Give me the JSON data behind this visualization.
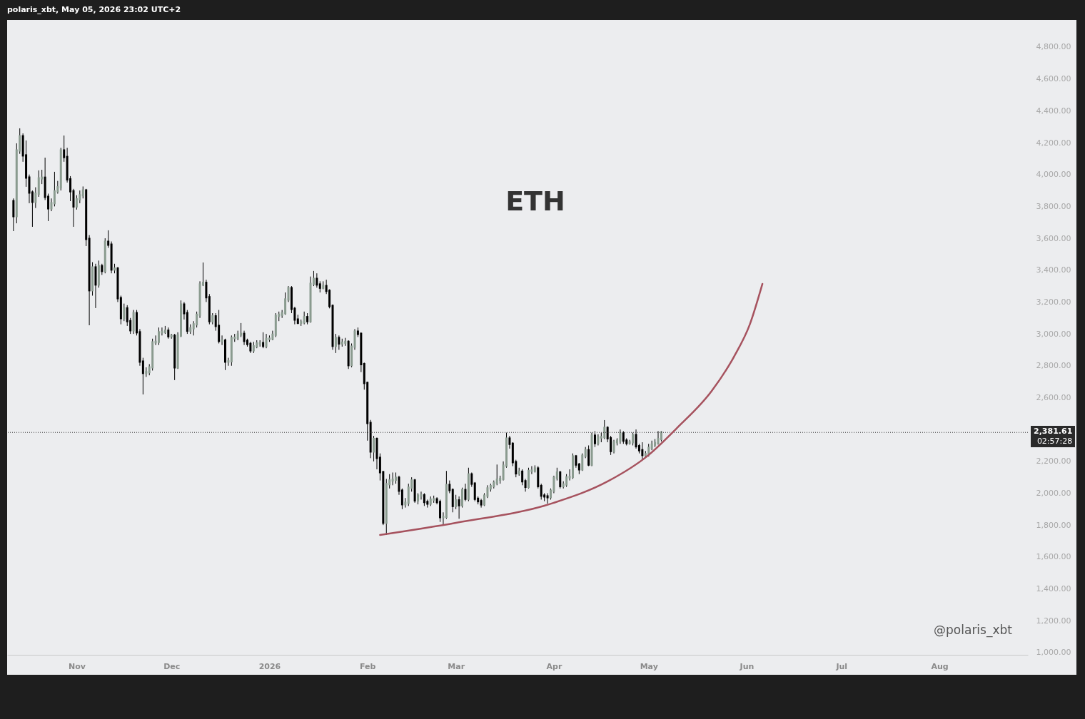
{
  "chart_data": {
    "type": "candlestick",
    "title": "ETH",
    "annotations": [
      "polaris_xbt, May 05, 2026 23:02 UTC+2",
      "@polaris_xbt",
      "02:57:28"
    ],
    "colors": [
      "#000000",
      "#8a9b8f",
      "#8a9b8f",
      "#000000",
      "#000000",
      "#000000",
      "#000000",
      "#8a9b8f",
      "#8a9b8f",
      "#8a9b8f",
      "#000000",
      "#000000",
      "#8a9b8f",
      "#8a9b8f",
      "#8a9b8f",
      "#8a9b8f",
      "#000000",
      "#000000",
      "#000000",
      "#000000",
      "#8a9b8f",
      "#8a9b8f",
      "#8a9b8f",
      "#000000",
      "#000000",
      "#8a9b8f",
      "#000000",
      "#8a9b8f",
      "#000000",
      "#8a9b8f",
      "#000000",
      "#000000",
      "#8a9b8f",
      "#000000",
      "#000000",
      "#8a9b8f",
      "#000000",
      "#000000",
      "#8a9b8f",
      "#000000",
      "#000000",
      "#000000",
      "#8a9b8f",
      "#8a9b8f",
      "#8a9b8f",
      "#8a9b8f",
      "#8a9b8f",
      "#8a9b8f",
      "#8a9b8f",
      "#000000",
      "#8a9b8f",
      "#000000",
      "#8a9b8f",
      "#8a9b8f",
      "#000000",
      "#000000",
      "#8a9b8f",
      "#8a9b8f",
      "#8a9b8f",
      "#8a9b8f",
      "#8a9b8f",
      "#000000",
      "#000000",
      "#8a9b8f",
      "#000000",
      "#000000",
      "#8a9b8f",
      "#000000",
      "#8a9b8f",
      "#8a9b8f",
      "#8a9b8f",
      "#8a9b8f",
      "#8a9b8f",
      "#000000",
      "#000000",
      "#000000",
      "#8a9b8f",
      "#8a9b8f",
      "#8a9b8f",
      "#000000",
      "#8a9b8f",
      "#8a9b8f",
      "#8a9b8f",
      "#8a9b8f",
      "#8a9b8f",
      "#8a9b8f",
      "#8a9b8f",
      "#8a9b8f",
      "#000000",
      "#000000",
      "#000000",
      "#8a9b8f",
      "#8a9b8f",
      "#000000",
      "#8a9b8f",
      "#8a9b8f",
      "#000000",
      "#000000",
      "#8a9b8f",
      "#000000",
      "#000000",
      "#000000",
      "#8a9b8f",
      "#000000",
      "#8a9b8f",
      "#8a9b8f",
      "#000000",
      "#8a9b8f",
      "#8a9b8f",
      "#000000",
      "#000000",
      "#000000",
      "#000000",
      "#000000",
      "#8a9b8f",
      "#000000",
      "#000000",
      "#000000",
      "#8a9b8f",
      "#8a9b8f",
      "#8a9b8f",
      "#8a9b8f",
      "#000000",
      "#000000",
      "#8a9b8f",
      "#8a9b8f",
      "#8a9b8f",
      "#000000",
      "#8a9b8f",
      "#8a9b8f",
      "#000000",
      "#000000",
      "#8a9b8f",
      "#8a9b8f",
      "#000000",
      "#000000",
      "#8a9b8f",
      "#8a9b8f",
      "#000000",
      "#000000",
      "#8a9b8f",
      "#000000",
      "#8a9b8f",
      "#000000",
      "#8a9b8f",
      "#000000",
      "#000000",
      "#000000",
      "#000000",
      "#8a9b8f",
      "#8a9b8f",
      "#8a9b8f",
      "#8a9b8f",
      "#8a9b8f",
      "#8a9b8f",
      "#8a9b8f",
      "#8a9b8f",
      "#000000",
      "#000000",
      "#000000",
      "#8a9b8f",
      "#000000",
      "#000000",
      "#8a9b8f",
      "#8a9b8f",
      "#8a9b8f",
      "#000000",
      "#000000",
      "#000000",
      "#000000",
      "#8a9b8f",
      "#8a9b8f",
      "#8a9b8f",
      "#000000",
      "#8a9b8f",
      "#8a9b8f",
      "#8a9b8f",
      "#8a9b8f",
      "#000000",
      "#000000",
      "#8a9b8f",
      "#8a9b8f",
      "#000000",
      "#8a9b8f",
      "#000000",
      "#8a9b8f",
      "#8a9b8f",
      "#8a9b8f",
      "#000000",
      "#000000",
      "#8a9b8f",
      "#8a9b8f",
      "#8a9b8f",
      "#000000",
      "#000000",
      "#8a9b8f",
      "#8a9b8f",
      "#000000",
      "#000000",
      "#000000",
      "#8a9b8f",
      "#8a9b8f",
      "#8a9b8f",
      "#8a9b8f",
      "#8a9b8f",
      "#8a9b8f"
    ],
    "xlim": [
      "2025-10-10",
      "2026-08-29"
    ],
    "xticks": [
      {
        "value": "2025-11-01",
        "label": "Nov"
      },
      {
        "value": "2025-12-01",
        "label": "Dec"
      },
      {
        "value": "2026-01-01",
        "label": "2026"
      },
      {
        "value": "2026-02-01",
        "label": "Feb"
      },
      {
        "value": "2026-03-01",
        "label": "Mar"
      },
      {
        "value": "2026-04-01",
        "label": "Apr"
      },
      {
        "value": "2026-05-01",
        "label": "May"
      },
      {
        "value": "2026-06-01",
        "label": "Jun"
      },
      {
        "value": "2026-07-01",
        "label": "Jul"
      },
      {
        "value": "2026-08-01",
        "label": "Aug"
      }
    ],
    "ylim": [
      986,
      4970
    ],
    "yticks": [
      {
        "value": 1000,
        "label": "1,000.00"
      },
      {
        "value": 1200,
        "label": "1,200.00"
      },
      {
        "value": 1400,
        "label": "1,400.00"
      },
      {
        "value": 1600,
        "label": "1,600.00"
      },
      {
        "value": 1800,
        "label": "1,800.00"
      },
      {
        "value": 2000,
        "label": "2,000.00"
      },
      {
        "value": 2200,
        "label": "2,200.00"
      },
      {
        "value": 2600,
        "label": "2,600.00"
      },
      {
        "value": 2800,
        "label": "2,800.00"
      },
      {
        "value": 3000,
        "label": "3,000.00"
      },
      {
        "value": 3200,
        "label": "3,200.00"
      },
      {
        "value": 3400,
        "label": "3,400.00"
      },
      {
        "value": 3600,
        "label": "3,600.00"
      },
      {
        "value": 3800,
        "label": "3,800.00"
      },
      {
        "value": 4000,
        "label": "4,000.00"
      },
      {
        "value": 4200,
        "label": "4,200.00"
      },
      {
        "value": 4400,
        "label": "4,400.00"
      },
      {
        "value": 4600,
        "label": "4,600.00"
      },
      {
        "value": 4800,
        "label": "4,800.00"
      }
    ],
    "ref_lines": [
      {
        "axis": "y",
        "value": 2381.61,
        "label": "2,381.61",
        "line_style": "dotted"
      }
    ],
    "x": [
      "2025-10-12",
      "2025-10-13",
      "2025-10-14",
      "2025-10-15",
      "2025-10-16",
      "2025-10-17",
      "2025-10-18",
      "2025-10-19",
      "2025-10-20",
      "2025-10-21",
      "2025-10-22",
      "2025-10-23",
      "2025-10-24",
      "2025-10-25",
      "2025-10-26",
      "2025-10-27",
      "2025-10-28",
      "2025-10-29",
      "2025-10-30",
      "2025-10-31",
      "2025-11-01",
      "2025-11-02",
      "2025-11-03",
      "2025-11-04",
      "2025-11-05",
      "2025-11-06",
      "2025-11-07",
      "2025-11-08",
      "2025-11-09",
      "2025-11-10",
      "2025-11-11",
      "2025-11-12",
      "2025-11-13",
      "2025-11-14",
      "2025-11-15",
      "2025-11-16",
      "2025-11-17",
      "2025-11-18",
      "2025-11-19",
      "2025-11-20",
      "2025-11-21",
      "2025-11-22",
      "2025-11-23",
      "2025-11-24",
      "2025-11-25",
      "2025-11-26",
      "2025-11-27",
      "2025-11-28",
      "2025-11-29",
      "2025-11-30",
      "2025-12-01",
      "2025-12-02",
      "2025-12-03",
      "2025-12-04",
      "2025-12-05",
      "2025-12-06",
      "2025-12-07",
      "2025-12-08",
      "2025-12-09",
      "2025-12-10",
      "2025-12-11",
      "2025-12-12",
      "2025-12-13",
      "2025-12-14",
      "2025-12-15",
      "2025-12-16",
      "2025-12-17",
      "2025-12-18",
      "2025-12-19",
      "2025-12-20",
      "2025-12-21",
      "2025-12-22",
      "2025-12-23",
      "2025-12-24",
      "2025-12-25",
      "2025-12-26",
      "2025-12-27",
      "2025-12-28",
      "2025-12-29",
      "2025-12-30",
      "2025-12-31",
      "2026-01-01",
      "2026-01-02",
      "2026-01-03",
      "2026-01-04",
      "2026-01-05",
      "2026-01-06",
      "2026-01-07",
      "2026-01-08",
      "2026-01-09",
      "2026-01-10",
      "2026-01-11",
      "2026-01-12",
      "2026-01-13",
      "2026-01-14",
      "2026-01-15",
      "2026-01-16",
      "2026-01-17",
      "2026-01-18",
      "2026-01-19",
      "2026-01-20",
      "2026-01-21",
      "2026-01-22",
      "2026-01-23",
      "2026-01-24",
      "2026-01-25",
      "2026-01-26",
      "2026-01-27",
      "2026-01-28",
      "2026-01-29",
      "2026-01-30",
      "2026-01-31",
      "2026-02-01",
      "2026-02-02",
      "2026-02-03",
      "2026-02-04",
      "2026-02-05",
      "2026-02-06",
      "2026-02-07",
      "2026-02-08",
      "2026-02-09",
      "2026-02-10",
      "2026-02-11",
      "2026-02-12",
      "2026-02-13",
      "2026-02-14",
      "2026-02-15",
      "2026-02-16",
      "2026-02-17",
      "2026-02-18",
      "2026-02-19",
      "2026-02-20",
      "2026-02-21",
      "2026-02-22",
      "2026-02-23",
      "2026-02-24",
      "2026-02-25",
      "2026-02-26",
      "2026-02-27",
      "2026-02-28",
      "2026-03-01",
      "2026-03-02",
      "2026-03-03",
      "2026-03-04",
      "2026-03-05",
      "2026-03-06",
      "2026-03-07",
      "2026-03-08",
      "2026-03-09",
      "2026-03-10",
      "2026-03-11",
      "2026-03-12",
      "2026-03-13",
      "2026-03-14",
      "2026-03-15",
      "2026-03-16",
      "2026-03-17",
      "2026-03-18",
      "2026-03-19",
      "2026-03-20",
      "2026-03-21",
      "2026-03-22",
      "2026-03-23",
      "2026-03-24",
      "2026-03-25",
      "2026-03-26",
      "2026-03-27",
      "2026-03-28",
      "2026-03-29",
      "2026-03-30",
      "2026-03-31",
      "2026-04-01",
      "2026-04-02",
      "2026-04-03",
      "2026-04-04",
      "2026-04-05",
      "2026-04-06",
      "2026-04-07",
      "2026-04-08",
      "2026-04-09",
      "2026-04-10",
      "2026-04-11",
      "2026-04-12",
      "2026-04-13",
      "2026-04-14",
      "2026-04-15",
      "2026-04-16",
      "2026-04-17",
      "2026-04-18",
      "2026-04-19",
      "2026-04-20",
      "2026-04-21",
      "2026-04-22",
      "2026-04-23",
      "2026-04-24",
      "2026-04-25",
      "2026-04-26",
      "2026-04-27",
      "2026-04-28",
      "2026-04-29",
      "2026-04-30",
      "2026-05-01",
      "2026-05-02",
      "2026-05-03",
      "2026-05-04",
      "2026-05-05"
    ],
    "ohlc": [
      [
        3833,
        3850,
        3645,
        3739
      ],
      [
        3739,
        4196,
        3694,
        4151
      ],
      [
        4151,
        4290,
        4130,
        4240
      ],
      [
        4240,
        4258,
        4080,
        4120
      ],
      [
        4120,
        4214,
        3923,
        3981
      ],
      [
        3981,
        4000,
        3820,
        3887
      ],
      [
        3887,
        3900,
        3672,
        3829
      ],
      [
        3829,
        3920,
        3790,
        3880
      ],
      [
        3880,
        4026,
        3860,
        3976
      ],
      [
        3976,
        4030,
        3940,
        3980
      ],
      [
        3980,
        4106,
        3840,
        3860
      ],
      [
        3860,
        3880,
        3708,
        3788
      ],
      [
        3788,
        3850,
        3770,
        3820
      ],
      [
        3820,
        4017,
        3800,
        3895
      ],
      [
        3895,
        3960,
        3880,
        3920
      ],
      [
        3920,
        4168,
        3900,
        4151
      ],
      [
        4151,
        4245,
        4080,
        4110
      ],
      [
        4110,
        4168,
        3950,
        3970
      ],
      [
        3970,
        3990,
        3833,
        3895
      ],
      [
        3895,
        3910,
        3672,
        3800
      ],
      [
        3800,
        3870,
        3780,
        3845
      ],
      [
        3845,
        3900,
        3820,
        3870
      ],
      [
        3870,
        3925,
        3850,
        3900
      ],
      [
        3900,
        3910,
        3551,
        3596
      ],
      [
        3596,
        3620,
        3054,
        3274
      ],
      [
        3274,
        3450,
        3240,
        3417
      ],
      [
        3417,
        3440,
        3162,
        3310
      ],
      [
        3310,
        3460,
        3290,
        3425
      ],
      [
        3425,
        3440,
        3370,
        3395
      ],
      [
        3395,
        3600,
        3380,
        3578
      ],
      [
        3578,
        3650,
        3540,
        3560
      ],
      [
        3560,
        3580,
        3380,
        3404
      ],
      [
        3404,
        3440,
        3380,
        3410
      ],
      [
        3410,
        3420,
        3200,
        3224
      ],
      [
        3224,
        3240,
        3060,
        3099
      ],
      [
        3099,
        3190,
        3080,
        3160
      ],
      [
        3160,
        3180,
        3050,
        3080
      ],
      [
        3080,
        3100,
        3000,
        3023
      ],
      [
        3023,
        3150,
        3000,
        3130
      ],
      [
        3130,
        3150,
        2990,
        3010
      ],
      [
        3010,
        3030,
        2800,
        2826
      ],
      [
        2826,
        2850,
        2620,
        2755
      ],
      [
        2755,
        2790,
        2730,
        2760
      ],
      [
        2760,
        2810,
        2740,
        2790
      ],
      [
        2790,
        2970,
        2770,
        2947
      ],
      [
        2947,
        2990,
        2930,
        2950
      ],
      [
        2950,
        3040,
        2930,
        3010
      ],
      [
        3010,
        3040,
        2990,
        3012
      ],
      [
        3012,
        3050,
        3000,
        3020
      ],
      [
        3020,
        3040,
        2970,
        2985
      ],
      [
        2985,
        3000,
        2970,
        2988
      ],
      [
        2988,
        3000,
        2710,
        2790
      ],
      [
        2790,
        3010,
        2780,
        2990
      ],
      [
        2990,
        3210,
        2980,
        3184
      ],
      [
        3184,
        3200,
        3090,
        3130
      ],
      [
        3130,
        3150,
        3000,
        3020
      ],
      [
        3020,
        3060,
        3000,
        3035
      ],
      [
        3035,
        3080,
        2990,
        3060
      ],
      [
        3060,
        3140,
        3040,
        3120
      ],
      [
        3120,
        3330,
        3100,
        3310
      ],
      [
        3310,
        3448,
        3300,
        3320
      ],
      [
        3320,
        3340,
        3200,
        3230
      ],
      [
        3230,
        3250,
        3060,
        3080
      ],
      [
        3080,
        3130,
        3060,
        3110
      ],
      [
        3110,
        3130,
        3020,
        3050
      ],
      [
        3050,
        3150,
        2940,
        2956
      ],
      [
        2956,
        2990,
        2930,
        2958
      ],
      [
        2958,
        2970,
        2773,
        2826
      ],
      [
        2826,
        2850,
        2800,
        2828
      ],
      [
        2828,
        2990,
        2800,
        2974
      ],
      [
        2974,
        3000,
        2950,
        2976
      ],
      [
        2976,
        3020,
        2960,
        2996
      ],
      [
        2996,
        3068,
        2980,
        3000
      ],
      [
        3000,
        3020,
        2930,
        2956
      ],
      [
        2956,
        2970,
        2920,
        2937
      ],
      [
        2937,
        2950,
        2880,
        2897
      ],
      [
        2897,
        2950,
        2880,
        2922
      ],
      [
        2922,
        2960,
        2910,
        2940
      ],
      [
        2940,
        2960,
        2920,
        2942
      ],
      [
        2942,
        3010,
        2910,
        2925
      ],
      [
        2925,
        3000,
        2910,
        2968
      ],
      [
        2968,
        2990,
        2950,
        2970
      ],
      [
        2970,
        3020,
        2960,
        2995
      ],
      [
        2995,
        3130,
        2980,
        3113
      ],
      [
        3113,
        3140,
        3080,
        3120
      ],
      [
        3120,
        3150,
        3100,
        3130
      ],
      [
        3130,
        3260,
        3120,
        3216
      ],
      [
        3216,
        3300,
        3200,
        3287
      ],
      [
        3287,
        3300,
        3130,
        3157
      ],
      [
        3157,
        3170,
        3060,
        3090
      ],
      [
        3090,
        3120,
        3060,
        3070
      ],
      [
        3070,
        3090,
        3050,
        3073
      ],
      [
        3073,
        3140,
        3060,
        3105
      ],
      [
        3105,
        3130,
        3060,
        3080
      ],
      [
        3080,
        3360,
        3070,
        3314
      ],
      [
        3314,
        3395,
        3300,
        3345
      ],
      [
        3345,
        3380,
        3290,
        3310
      ],
      [
        3310,
        3330,
        3260,
        3290
      ],
      [
        3290,
        3330,
        3280,
        3300
      ],
      [
        3300,
        3340,
        3250,
        3270
      ],
      [
        3270,
        3280,
        3160,
        3175
      ],
      [
        3175,
        3185,
        2900,
        2925
      ],
      [
        2925,
        3000,
        2880,
        2974
      ],
      [
        2974,
        2990,
        2900,
        2940
      ],
      [
        2940,
        2970,
        2920,
        2945
      ],
      [
        2945,
        2975,
        2925,
        2950
      ],
      [
        2950,
        2960,
        2780,
        2804
      ],
      [
        2804,
        2940,
        2790,
        2920
      ],
      [
        2920,
        3030,
        2900,
        3014
      ],
      [
        3014,
        3040,
        2980,
        3000
      ],
      [
        3000,
        3010,
        2760,
        2810
      ],
      [
        2810,
        2820,
        2650,
        2692
      ],
      [
        2692,
        2700,
        2330,
        2441
      ],
      [
        2441,
        2460,
        2220,
        2262
      ],
      [
        2262,
        2360,
        2200,
        2340
      ],
      [
        2340,
        2350,
        2150,
        2222
      ],
      [
        2222,
        2250,
        2080,
        2132
      ],
      [
        2132,
        2140,
        1800,
        1815
      ],
      [
        1815,
        2090,
        1738,
        2057
      ],
      [
        2057,
        2120,
        2030,
        2080
      ],
      [
        2080,
        2130,
        2050,
        2085
      ],
      [
        2085,
        2130,
        2060,
        2097
      ],
      [
        2097,
        2110,
        1990,
        2016
      ],
      [
        2016,
        2030,
        1900,
        1931
      ],
      [
        1931,
        1970,
        1910,
        1940
      ],
      [
        1940,
        2060,
        1920,
        2035
      ],
      [
        2035,
        2100,
        2010,
        2080
      ],
      [
        2080,
        2090,
        1940,
        1955
      ],
      [
        1955,
        2000,
        1930,
        1985
      ],
      [
        1985,
        2010,
        1960,
        1987
      ],
      [
        1987,
        2000,
        1920,
        1945
      ],
      [
        1945,
        1960,
        1910,
        1935
      ],
      [
        1935,
        1980,
        1920,
        1960
      ],
      [
        1960,
        1985,
        1940,
        1962
      ],
      [
        1962,
        1975,
        1930,
        1945
      ],
      [
        1945,
        1960,
        1820,
        1850
      ],
      [
        1850,
        1880,
        1797,
        1852
      ],
      [
        1852,
        2140,
        1840,
        2052
      ],
      [
        2052,
        2080,
        2000,
        2020
      ],
      [
        2020,
        2030,
        1880,
        1920
      ],
      [
        1920,
        1990,
        1900,
        1955
      ],
      [
        1955,
        1980,
        1840,
        1925
      ],
      [
        1925,
        2035,
        1910,
        2020
      ],
      [
        2020,
        2060,
        1950,
        1965
      ],
      [
        1965,
        2160,
        1950,
        2118
      ],
      [
        2118,
        2130,
        2040,
        2060
      ],
      [
        2060,
        2070,
        1950,
        1965
      ],
      [
        1965,
        1980,
        1930,
        1950
      ],
      [
        1950,
        1965,
        1910,
        1930
      ],
      [
        1930,
        2000,
        1920,
        1985
      ],
      [
        1985,
        2050,
        1970,
        2030
      ],
      [
        2030,
        2060,
        2010,
        2045
      ],
      [
        2045,
        2080,
        2030,
        2065
      ],
      [
        2065,
        2180,
        2050,
        2085
      ],
      [
        2085,
        2110,
        2060,
        2090
      ],
      [
        2090,
        2200,
        2080,
        2173
      ],
      [
        2173,
        2380,
        2160,
        2343
      ],
      [
        2343,
        2360,
        2280,
        2310
      ],
      [
        2310,
        2320,
        2170,
        2195
      ],
      [
        2195,
        2210,
        2100,
        2125
      ],
      [
        2125,
        2160,
        2110,
        2135
      ],
      [
        2135,
        2150,
        2050,
        2075
      ],
      [
        2075,
        2090,
        2010,
        2040
      ],
      [
        2040,
        2160,
        2030,
        2140
      ],
      [
        2140,
        2170,
        2120,
        2142
      ],
      [
        2142,
        2175,
        2130,
        2155
      ],
      [
        2155,
        2170,
        2030,
        2045
      ],
      [
        2045,
        2060,
        1960,
        1985
      ],
      [
        1985,
        2000,
        1950,
        1980
      ],
      [
        1980,
        2000,
        1935,
        1975
      ],
      [
        1975,
        2030,
        1960,
        2016
      ],
      [
        2016,
        2110,
        2000,
        2097
      ],
      [
        2097,
        2160,
        2080,
        2130
      ],
      [
        2130,
        2140,
        2030,
        2045
      ],
      [
        2045,
        2075,
        2030,
        2055
      ],
      [
        2055,
        2120,
        2040,
        2100
      ],
      [
        2100,
        2150,
        2080,
        2102
      ],
      [
        2102,
        2250,
        2090,
        2231
      ],
      [
        2231,
        2240,
        2160,
        2180
      ],
      [
        2180,
        2190,
        2120,
        2150
      ],
      [
        2150,
        2250,
        2140,
        2235
      ],
      [
        2235,
        2290,
        2220,
        2270
      ],
      [
        2270,
        2300,
        2170,
        2180
      ],
      [
        2180,
        2380,
        2170,
        2361
      ],
      [
        2361,
        2390,
        2290,
        2315
      ],
      [
        2315,
        2370,
        2300,
        2350
      ],
      [
        2350,
        2380,
        2320,
        2352
      ],
      [
        2352,
        2459,
        2340,
        2410
      ],
      [
        2410,
        2420,
        2320,
        2345
      ],
      [
        2345,
        2360,
        2240,
        2265
      ],
      [
        2265,
        2335,
        2250,
        2320
      ],
      [
        2320,
        2345,
        2300,
        2330
      ],
      [
        2330,
        2400,
        2310,
        2375
      ],
      [
        2375,
        2390,
        2310,
        2330
      ],
      [
        2330,
        2345,
        2300,
        2315
      ],
      [
        2315,
        2335,
        2305,
        2320
      ],
      [
        2320,
        2380,
        2300,
        2365
      ],
      [
        2365,
        2400,
        2280,
        2295
      ],
      [
        2295,
        2310,
        2250,
        2270
      ],
      [
        2270,
        2320,
        2210,
        2240
      ],
      [
        2240,
        2265,
        2225,
        2245
      ],
      [
        2245,
        2310,
        2230,
        2285
      ],
      [
        2285,
        2330,
        2270,
        2305
      ],
      [
        2305,
        2340,
        2290,
        2315
      ],
      [
        2315,
        2390,
        2305,
        2340
      ],
      [
        2340,
        2390,
        2325,
        2381.61
      ]
    ],
    "series": [
      {
        "type": "line",
        "color": "#a6525e",
        "x": [
          "2026-02-05",
          "2026-03-01",
          "2026-04-01",
          "2026-04-18",
          "2026-05-01",
          "2026-05-10",
          "2026-05-21",
          "2026-05-28",
          "2026-06-02",
          "2026-06-06"
        ],
        "values": [
          1738,
          1814,
          1940,
          2074,
          2240,
          2410,
          2643,
          2857,
          3059,
          3314
        ]
      }
    ]
  }
}
